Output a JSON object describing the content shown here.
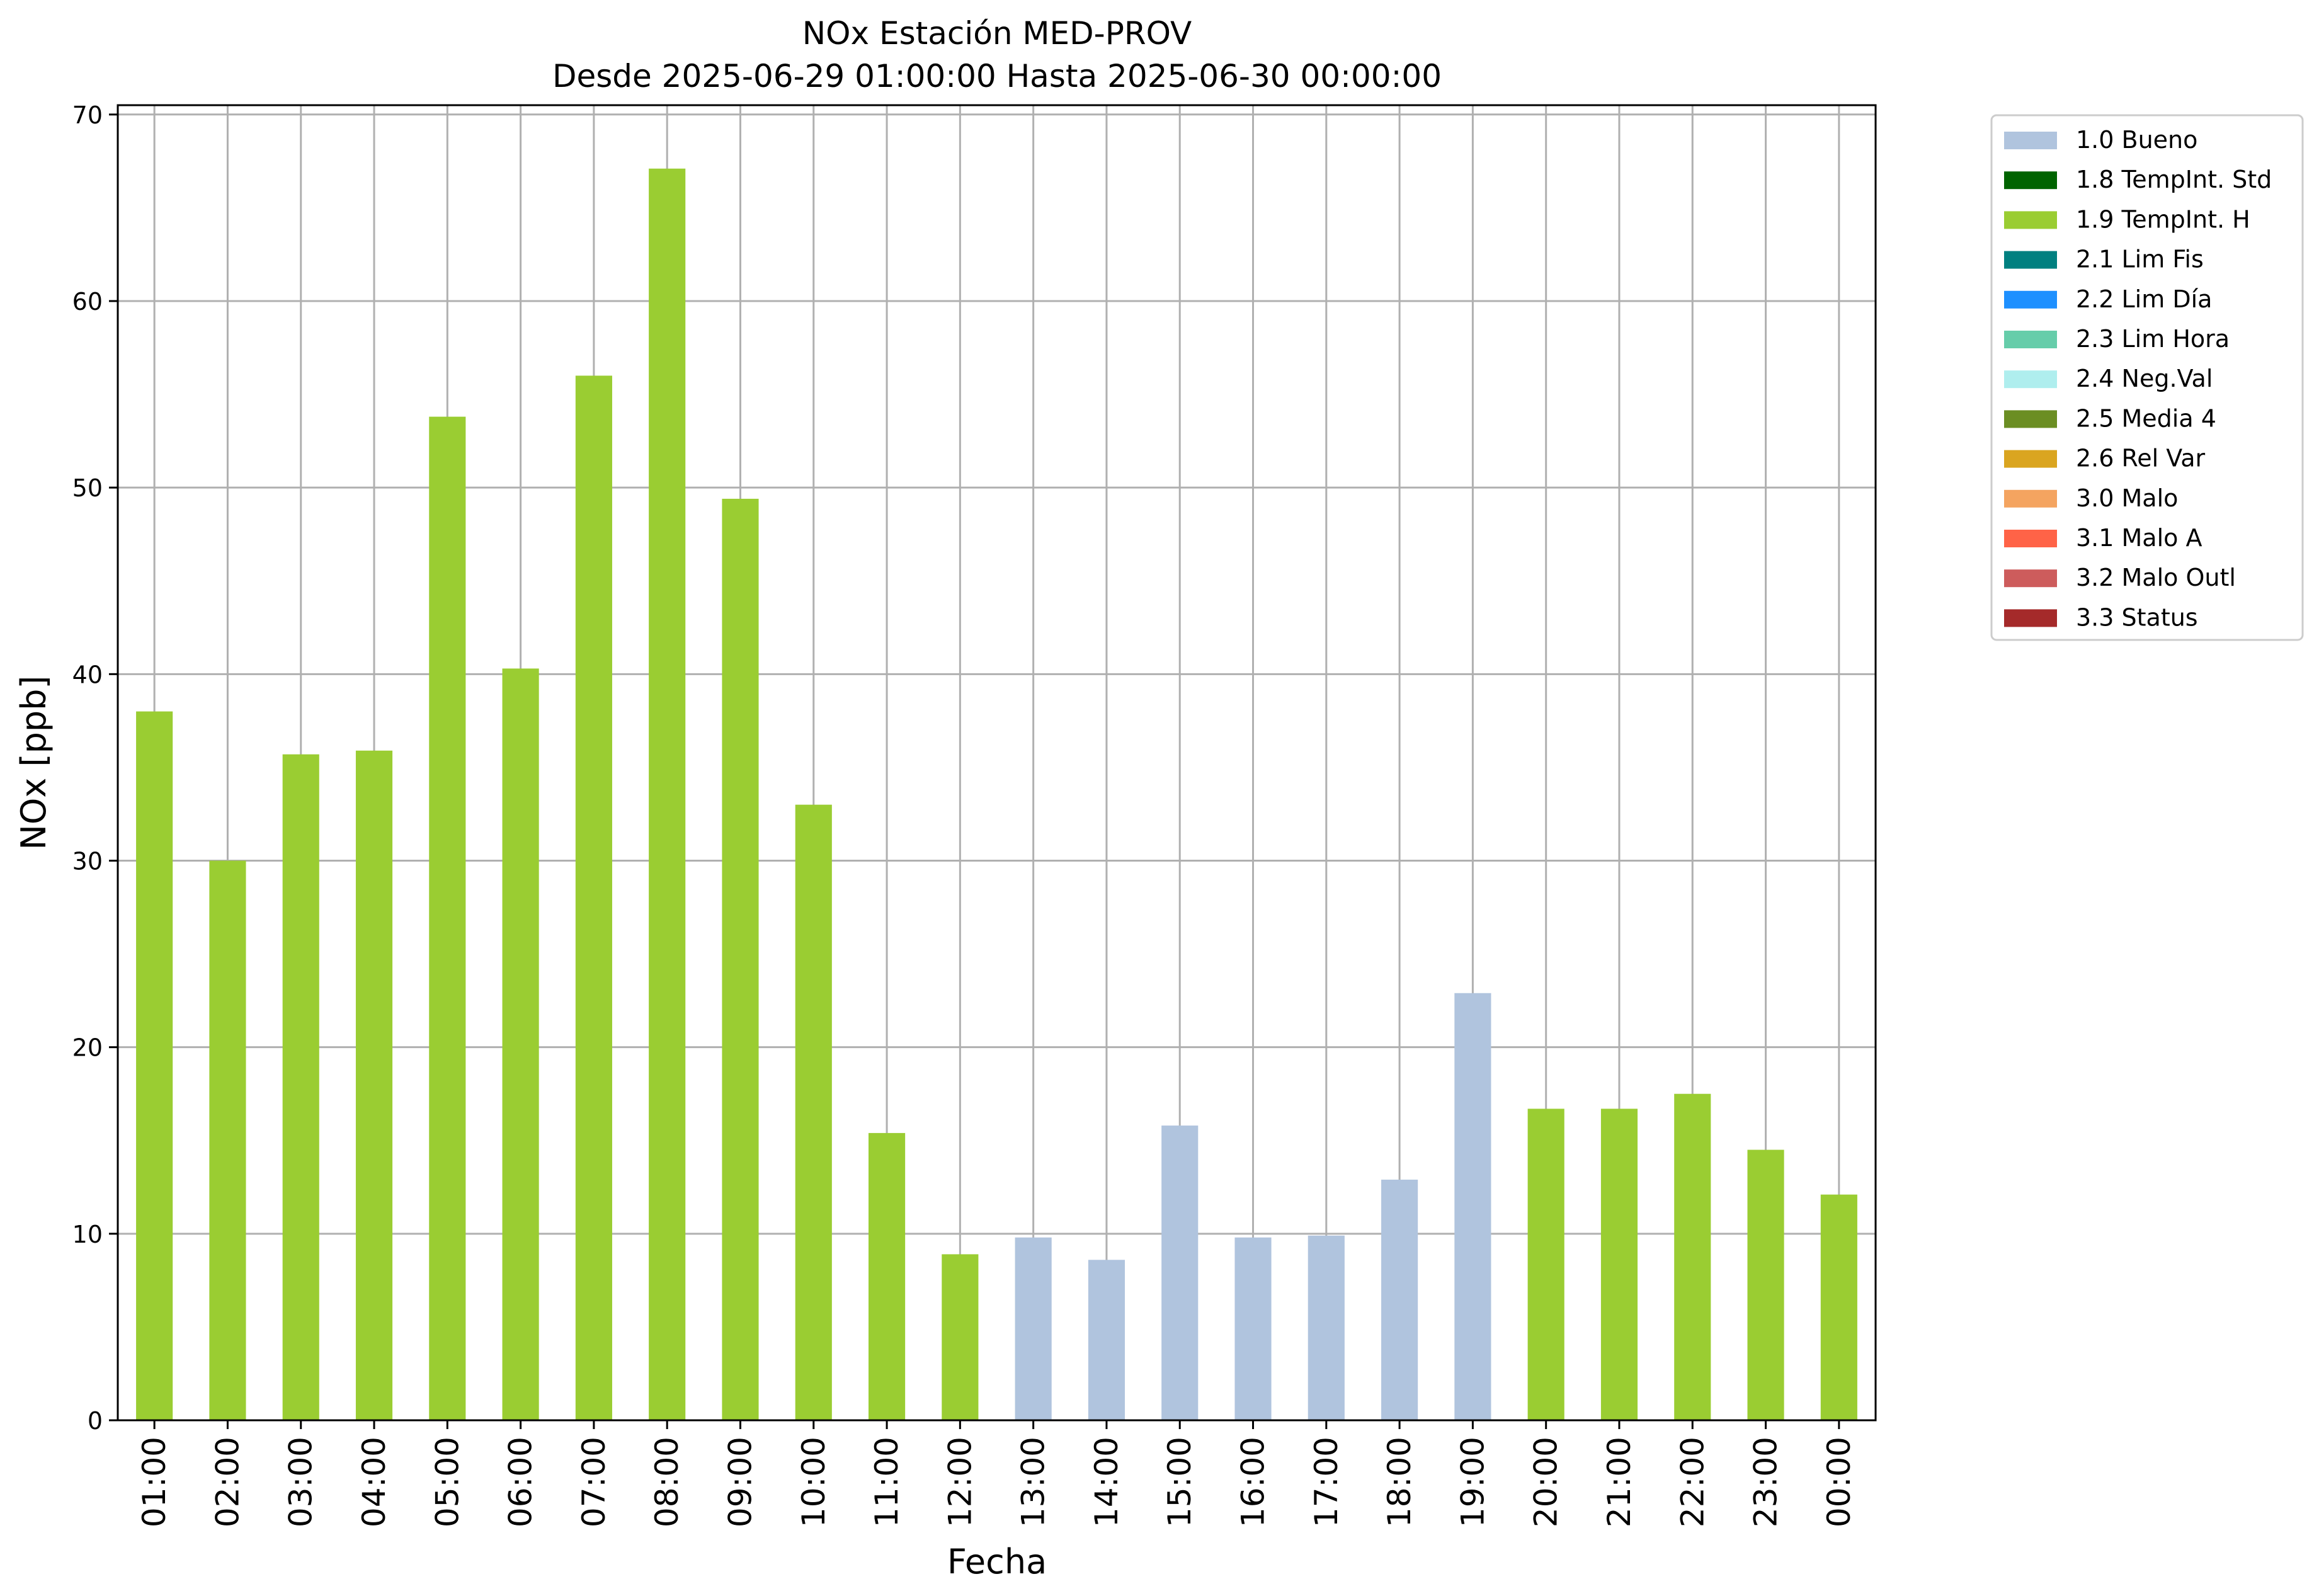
{
  "chart_data": {
    "type": "bar",
    "title": "NOx Estación MED-PROV",
    "subtitle": "Desde 2025-06-29 01:00:00 Hasta 2025-06-30 00:00:00",
    "xlabel": "Fecha",
    "ylabel": "NOx [ppb]",
    "ylim": [
      0,
      70.5
    ],
    "yticks": [
      0,
      10,
      20,
      30,
      40,
      50,
      60,
      70
    ],
    "grid": true,
    "legend_position": "outside-right-top",
    "categories": [
      "01:00",
      "02:00",
      "03:00",
      "04:00",
      "05:00",
      "06:00",
      "07:00",
      "08:00",
      "09:00",
      "10:00",
      "11:00",
      "12:00",
      "13:00",
      "14:00",
      "15:00",
      "16:00",
      "17:00",
      "18:00",
      "19:00",
      "20:00",
      "21:00",
      "22:00",
      "23:00",
      "00:00"
    ],
    "values": [
      38.0,
      30.0,
      35.7,
      35.9,
      53.8,
      40.3,
      56.0,
      67.1,
      49.4,
      33.0,
      15.4,
      8.9,
      9.8,
      8.6,
      15.8,
      9.8,
      9.9,
      12.9,
      22.9,
      16.7,
      16.7,
      17.5,
      14.5,
      12.1
    ],
    "bar_flags": [
      "1.9",
      "1.9",
      "1.9",
      "1.9",
      "1.9",
      "1.9",
      "1.9",
      "1.9",
      "1.9",
      "1.9",
      "1.9",
      "1.9",
      "1.0",
      "1.0",
      "1.0",
      "1.0",
      "1.0",
      "1.0",
      "1.0",
      "1.9",
      "1.9",
      "1.9",
      "1.9",
      "1.9"
    ],
    "legend": [
      {
        "code": "1.0",
        "label": "1.0 Bueno",
        "color": "#b0c4de"
      },
      {
        "code": "1.8",
        "label": "1.8 TempInt. Std",
        "color": "#006400"
      },
      {
        "code": "1.9",
        "label": "1.9 TempInt. H",
        "color": "#9acd32"
      },
      {
        "code": "2.1",
        "label": "2.1 Lim Fis",
        "color": "#008080"
      },
      {
        "code": "2.2",
        "label": "2.2 Lim Día",
        "color": "#1e90ff"
      },
      {
        "code": "2.3",
        "label": "2.3 Lim Hora",
        "color": "#66cdaa"
      },
      {
        "code": "2.4",
        "label": "2.4 Neg.Val",
        "color": "#afeeee"
      },
      {
        "code": "2.5",
        "label": "2.5 Media 4",
        "color": "#6b8e23"
      },
      {
        "code": "2.6",
        "label": "2.6 Rel Var",
        "color": "#daa520"
      },
      {
        "code": "3.0",
        "label": "3.0 Malo",
        "color": "#f4a460"
      },
      {
        "code": "3.1",
        "label": "3.1 Malo A",
        "color": "#ff6347"
      },
      {
        "code": "3.2",
        "label": "3.2 Malo Outl",
        "color": "#cd5c5c"
      },
      {
        "code": "3.3",
        "label": "3.3 Status",
        "color": "#a52a2a"
      }
    ]
  }
}
